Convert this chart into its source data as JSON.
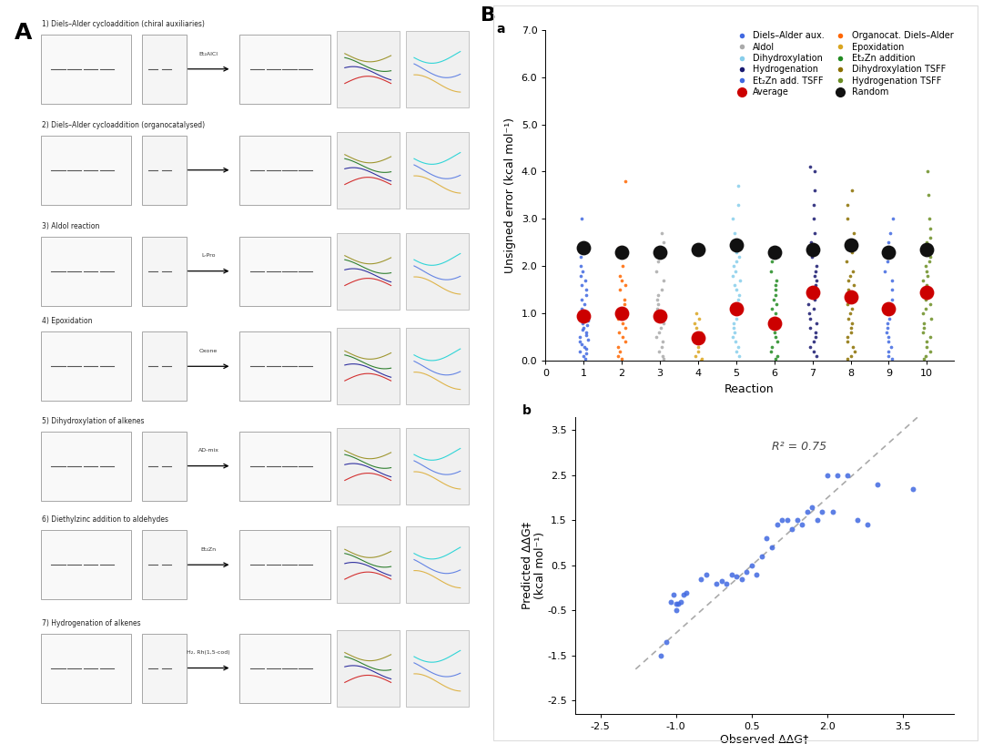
{
  "panel_a_label": "A",
  "panel_b_label": "B",
  "plot_a_label": "a",
  "plot_b_label": "b",
  "series_colors": {
    "1": "#4169E1",
    "2": "#FF6600",
    "3": "#AAAAAA",
    "4": "#DAA520",
    "5": "#87CEEB",
    "6": "#228B22",
    "7": "#191970",
    "8": "#8B7000",
    "9": "#4169E1",
    "10": "#6B8E23"
  },
  "avg_color": "#CC0000",
  "random_color": "#111111",
  "avg_values": {
    "1": 0.95,
    "2": 1.0,
    "3": 0.95,
    "4": 0.48,
    "5": 1.1,
    "6": 0.8,
    "7": 1.45,
    "8": 1.35,
    "9": 1.1,
    "10": 1.45
  },
  "random_values": {
    "1": 2.4,
    "2": 2.3,
    "3": 2.3,
    "4": 2.35,
    "5": 2.45,
    "6": 2.3,
    "7": 2.35,
    "8": 2.45,
    "9": 2.3,
    "10": 2.35
  },
  "scatter_pts": {
    "1": [
      0.05,
      0.1,
      0.15,
      0.2,
      0.25,
      0.3,
      0.35,
      0.4,
      0.45,
      0.5,
      0.55,
      0.6,
      0.65,
      0.7,
      0.75,
      0.8,
      0.85,
      0.9,
      0.95,
      1.0,
      1.1,
      1.2,
      1.3,
      1.4,
      1.5,
      1.6,
      1.7,
      1.8,
      1.9,
      2.0,
      2.2,
      3.0
    ],
    "2": [
      0.05,
      0.1,
      0.2,
      0.3,
      0.4,
      0.5,
      0.6,
      0.7,
      0.8,
      0.9,
      1.0,
      1.1,
      1.2,
      1.3,
      1.5,
      1.6,
      1.7,
      1.8,
      2.0,
      2.2,
      2.4,
      3.8
    ],
    "3": [
      0.05,
      0.1,
      0.2,
      0.3,
      0.4,
      0.5,
      0.6,
      0.7,
      0.8,
      0.9,
      1.0,
      1.1,
      1.2,
      1.3,
      1.4,
      1.5,
      1.7,
      1.9,
      2.1,
      2.3,
      2.5,
      2.7
    ],
    "4": [
      0.0,
      0.05,
      0.1,
      0.2,
      0.3,
      0.4,
      0.5,
      0.6,
      0.7,
      0.8,
      0.9,
      1.0
    ],
    "5": [
      0.1,
      0.2,
      0.3,
      0.4,
      0.5,
      0.6,
      0.7,
      0.8,
      0.9,
      1.0,
      1.1,
      1.2,
      1.3,
      1.4,
      1.5,
      1.6,
      1.7,
      1.8,
      1.9,
      2.0,
      2.1,
      2.2,
      2.3,
      2.5,
      2.7,
      3.0,
      3.3,
      3.7
    ],
    "6": [
      0.05,
      0.1,
      0.2,
      0.3,
      0.4,
      0.5,
      0.6,
      0.7,
      0.8,
      0.9,
      1.0,
      1.1,
      1.2,
      1.3,
      1.4,
      1.5,
      1.6,
      1.7,
      1.9,
      2.1,
      2.2
    ],
    "7": [
      0.1,
      0.2,
      0.3,
      0.4,
      0.5,
      0.6,
      0.7,
      0.8,
      0.9,
      1.0,
      1.1,
      1.2,
      1.3,
      1.4,
      1.5,
      1.6,
      1.7,
      1.8,
      1.9,
      2.0,
      2.2,
      2.5,
      2.7,
      3.0,
      3.3,
      3.6,
      4.0,
      4.1
    ],
    "8": [
      0.05,
      0.1,
      0.2,
      0.3,
      0.4,
      0.5,
      0.6,
      0.7,
      0.8,
      0.9,
      1.0,
      1.1,
      1.2,
      1.3,
      1.4,
      1.5,
      1.6,
      1.7,
      1.8,
      1.9,
      2.1,
      2.3,
      2.5,
      2.7,
      3.0,
      3.3,
      3.6
    ],
    "9": [
      0.05,
      0.1,
      0.2,
      0.3,
      0.4,
      0.5,
      0.6,
      0.7,
      0.8,
      0.9,
      1.0,
      1.1,
      1.2,
      1.3,
      1.5,
      1.7,
      1.9,
      2.1,
      2.3,
      2.5,
      2.7,
      3.0
    ],
    "10": [
      0.05,
      0.1,
      0.2,
      0.3,
      0.4,
      0.5,
      0.6,
      0.7,
      0.8,
      0.9,
      1.0,
      1.1,
      1.2,
      1.3,
      1.5,
      1.6,
      1.7,
      1.8,
      1.9,
      2.0,
      2.1,
      2.2,
      2.3,
      2.5,
      2.6,
      2.8,
      3.0,
      3.5,
      4.0
    ]
  },
  "scatter_b_x": [
    -1.3,
    -1.2,
    -1.1,
    -1.05,
    -1.0,
    -1.0,
    -0.95,
    -0.9,
    -0.85,
    -0.8,
    -0.5,
    -0.4,
    -0.2,
    -0.1,
    0.0,
    0.1,
    0.2,
    0.3,
    0.4,
    0.5,
    0.6,
    0.7,
    0.8,
    0.9,
    1.0,
    1.1,
    1.2,
    1.3,
    1.4,
    1.5,
    1.6,
    1.7,
    1.8,
    1.9,
    2.0,
    2.1,
    2.2,
    2.4,
    2.6,
    2.8,
    3.0,
    3.7
  ],
  "scatter_b_y": [
    -1.5,
    -1.2,
    -0.3,
    -0.15,
    -0.35,
    -0.5,
    -0.35,
    -0.3,
    -0.15,
    -0.1,
    0.2,
    0.3,
    0.1,
    0.15,
    0.1,
    0.3,
    0.25,
    0.2,
    0.35,
    0.5,
    0.3,
    0.7,
    1.1,
    0.9,
    1.4,
    1.5,
    1.5,
    1.3,
    1.5,
    1.4,
    1.7,
    1.8,
    1.5,
    1.7,
    2.5,
    1.7,
    2.5,
    2.5,
    1.5,
    1.4,
    2.3,
    2.2
  ],
  "ylabel_a": "Unsigned error (kcal mol⁻¹)",
  "xlabel_a": "Reaction",
  "ylabel_b": "Predicted ΔΔG‡\n(kcal mol⁻¹)",
  "xlabel_b": "Observed ΔΔG‡\n(kcal mol⁻¹)",
  "r2_text": "R² = 0.75",
  "xlim_a": [
    0.3,
    10.7
  ],
  "ylim_a": [
    0.0,
    7.0
  ],
  "xlim_b": [
    -3.0,
    4.5
  ],
  "ylim_b": [
    -2.8,
    3.8
  ],
  "legend_left": [
    {
      "label": "Diels–Alder aux.",
      "color": "#4169E1",
      "size": 5
    },
    {
      "label": "Aldol",
      "color": "#AAAAAA",
      "size": 5
    },
    {
      "label": "Dihydroxylation",
      "color": "#87CEEB",
      "size": 5
    },
    {
      "label": "Hydrogenation",
      "color": "#191970",
      "size": 5
    },
    {
      "label": "Et₂Zn add. TSFF",
      "color": "#4169E1",
      "size": 5
    },
    {
      "label": "Average",
      "color": "#CC0000",
      "size": 9
    }
  ],
  "legend_right": [
    {
      "label": "Organocat. Diels–Alder",
      "color": "#FF6600",
      "size": 5
    },
    {
      "label": "Epoxidation",
      "color": "#DAA520",
      "size": 5
    },
    {
      "label": "Et₂Zn addition",
      "color": "#228B22",
      "size": 5
    },
    {
      "label": "Dihydroxylation TSFF",
      "color": "#8B7000",
      "size": 5
    },
    {
      "label": "Hydrogenation TSFF",
      "color": "#6B8E23",
      "size": 5
    },
    {
      "label": "Random",
      "color": "#111111",
      "size": 9
    }
  ],
  "reaction_titles": [
    "1) Diels–Alder cycloaddition (chiral auxiliaries)",
    "2) Diels–Alder cycloaddition (organocatalysed)",
    "3) Aldol reaction",
    "4) Epoxidation",
    "5) Dihydroxylation of alkenes",
    "6) Diethylzinc addition to aldehydes",
    "7) Hydrogenation of alkenes"
  ],
  "reaction_reagents": [
    "Et₂AlCl",
    "",
    "L-Pro",
    "Oxone",
    "AD-mix",
    "Et₂Zn",
    "H₂, Rh(1,5-cod)"
  ],
  "bg_color": "#FFFFFF"
}
